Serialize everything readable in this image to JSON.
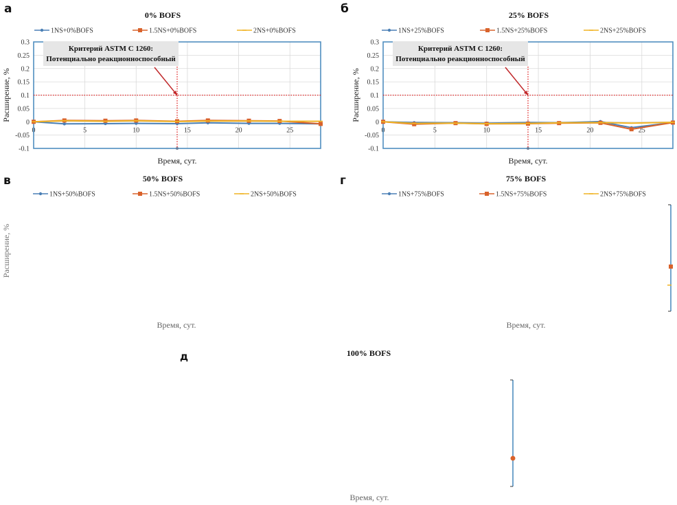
{
  "panels": {
    "a": {
      "letter": "а"
    },
    "b": {
      "letter": "б"
    },
    "v": {
      "letter": "в"
    },
    "g": {
      "letter": "г"
    },
    "d": {
      "letter": "д"
    }
  },
  "annotation": {
    "line1": "Критерий ASTM C 1260:",
    "line2": "Потенциально реакционноспособный"
  },
  "colors": {
    "series1": "#4a7fb5",
    "series2": "#d9622b",
    "series3": "#f0b323",
    "frame": "#4f8dbf",
    "grid": "#d9d9d9",
    "criterion": "#e02020",
    "arrow": "#c0282a",
    "annotation_bg": "#e6e6e6"
  },
  "chart_data": [
    {
      "id": "a",
      "type": "line",
      "title": "0% BOFS",
      "xlabel": "Время, сут.",
      "ylabel": "Расширение, %",
      "xlim": [
        0,
        28
      ],
      "ylim": [
        -0.1,
        0.3
      ],
      "xticks": [
        0,
        5,
        10,
        15,
        20,
        25
      ],
      "yticks": [
        -0.1,
        -0.05,
        0,
        0.05,
        0.1,
        0.15,
        0.2,
        0.25,
        0.3
      ],
      "ytick_labels": [
        "-0.1",
        "-0.05",
        "0",
        "0.05",
        "0.1",
        "0.15",
        "0.2",
        "0.25",
        "0.3"
      ],
      "grid": true,
      "legend_position": "top",
      "criterion": {
        "y": 0.1,
        "x": 14
      },
      "x": [
        0,
        3,
        7,
        10,
        14,
        17,
        21,
        24,
        28
      ],
      "series": [
        {
          "name": "1NS+0%BOFS",
          "values": [
            0,
            -0.008,
            -0.007,
            -0.006,
            -0.007,
            -0.004,
            -0.006,
            -0.006,
            -0.008
          ]
        },
        {
          "name": "1.5NS+0%BOFS",
          "values": [
            0,
            0.005,
            0.004,
            0.005,
            0.002,
            0.005,
            0.004,
            0.003,
            -0.008
          ]
        },
        {
          "name": "2NS+0%BOFS",
          "values": [
            0,
            0.004,
            0.002,
            0.004,
            0.001,
            0.003,
            0.003,
            0.002,
            0.002
          ]
        }
      ]
    },
    {
      "id": "b",
      "type": "line",
      "title": "25% BOFS",
      "xlabel": "Время, сут.",
      "ylabel": "Расширение, %",
      "xlim": [
        0,
        28
      ],
      "ylim": [
        -0.1,
        0.3
      ],
      "xticks": [
        0,
        5,
        10,
        15,
        20,
        25
      ],
      "yticks": [
        -0.1,
        -0.05,
        0,
        0.05,
        0.1,
        0.15,
        0.2,
        0.25,
        0.3
      ],
      "ytick_labels": [
        "-0.1",
        "-0.05",
        "0",
        "0.05",
        "0.1",
        "0.15",
        "0.2",
        "0.25",
        "0.3"
      ],
      "grid": true,
      "legend_position": "top",
      "criterion": {
        "y": 0.1,
        "x": 14
      },
      "x": [
        0,
        3,
        7,
        10,
        14,
        17,
        21,
        24,
        28
      ],
      "series": [
        {
          "name": "1NS+25%BOFS",
          "values": [
            0,
            -0.003,
            -0.004,
            -0.005,
            -0.003,
            -0.004,
            0.001,
            -0.022,
            -0.003
          ]
        },
        {
          "name": "1.5NS+25%BOFS",
          "values": [
            0,
            -0.009,
            -0.005,
            -0.008,
            -0.007,
            -0.005,
            -0.004,
            -0.028,
            -0.003
          ]
        },
        {
          "name": "2NS+25%BOFS",
          "values": [
            0,
            -0.006,
            -0.005,
            -0.007,
            -0.006,
            -0.004,
            -0.003,
            -0.005,
            -0.002
          ]
        }
      ]
    },
    {
      "id": "v",
      "type": "line",
      "title": "50% BOFS",
      "xlabel": "Время, сут.",
      "ylabel": "Расширение, %",
      "legend_position": "top",
      "series": [
        {
          "name": "1NS+50%BOFS",
          "values": []
        },
        {
          "name": "1.5NS+50%BOFS",
          "values": []
        },
        {
          "name": "2NS+50%BOFS",
          "values": []
        }
      ]
    },
    {
      "id": "g",
      "type": "line",
      "title": "75% BOFS",
      "xlabel": "Время, сут.",
      "legend_position": "top",
      "series": [
        {
          "name": "1NS+75%BOFS",
          "values": []
        },
        {
          "name": "1.5NS+75%BOFS",
          "values": []
        },
        {
          "name": "2NS+75%BOFS",
          "values": []
        }
      ]
    },
    {
      "id": "d",
      "type": "line",
      "title": "100% BOFS",
      "xlabel": "Время, сут.",
      "series": []
    }
  ]
}
